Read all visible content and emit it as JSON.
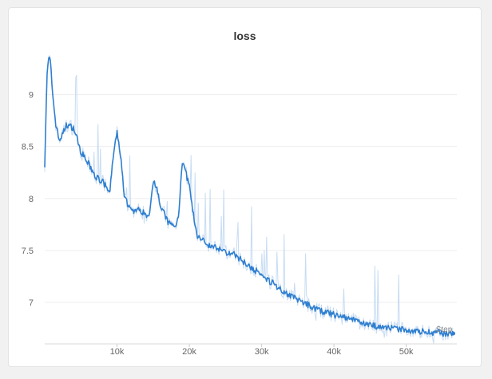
{
  "panel": {
    "title": "loss"
  },
  "chart_data": {
    "type": "line",
    "title": "loss",
    "xlabel": "Step",
    "ylabel": "",
    "xlim": [
      0,
      57000
    ],
    "ylim": [
      6.6,
      9.45
    ],
    "x_ticks": [
      10000,
      20000,
      30000,
      40000,
      50000
    ],
    "x_tick_labels": [
      "10k",
      "20k",
      "30k",
      "40k",
      "50k"
    ],
    "y_ticks": [
      7,
      7.5,
      8,
      8.5,
      9
    ],
    "y_tick_labels": [
      "7",
      "7.5",
      "8",
      "8.5",
      "9"
    ],
    "grid": "horizontal",
    "colors": {
      "smoothed": "#2f7fd0",
      "raw": "#c7dcf3"
    },
    "series": [
      {
        "x": [
          0,
          300,
          600,
          800,
          1000,
          1500,
          2000,
          2500,
          3000,
          4000,
          5000,
          6000,
          7000,
          8000,
          9000,
          9500,
          10000,
          10500,
          11000,
          12000,
          13000,
          14000,
          14500,
          15000,
          15500,
          16000,
          17000,
          18000,
          18500,
          19000,
          19500,
          20000,
          20500,
          21000,
          22000,
          23000,
          24000,
          25000,
          26000,
          28000,
          30000,
          32000,
          34000,
          36000,
          38000,
          40000,
          42000,
          44000,
          46000,
          48000,
          50000,
          52000,
          54000,
          56000,
          56500
        ],
        "values": [
          8.33,
          9.18,
          9.37,
          9.3,
          9.08,
          8.73,
          8.56,
          8.62,
          8.71,
          8.68,
          8.45,
          8.34,
          8.21,
          8.16,
          8.06,
          8.42,
          8.63,
          8.42,
          8.01,
          7.88,
          7.89,
          7.85,
          7.82,
          8.18,
          8.12,
          7.93,
          7.78,
          7.72,
          7.83,
          8.36,
          8.25,
          8.12,
          7.88,
          7.64,
          7.59,
          7.54,
          7.52,
          7.48,
          7.47,
          7.37,
          7.26,
          7.16,
          7.06,
          6.99,
          6.92,
          6.88,
          6.84,
          6.8,
          6.77,
          6.75,
          6.73,
          6.72,
          6.71,
          6.7,
          6.7
        ]
      }
    ]
  }
}
